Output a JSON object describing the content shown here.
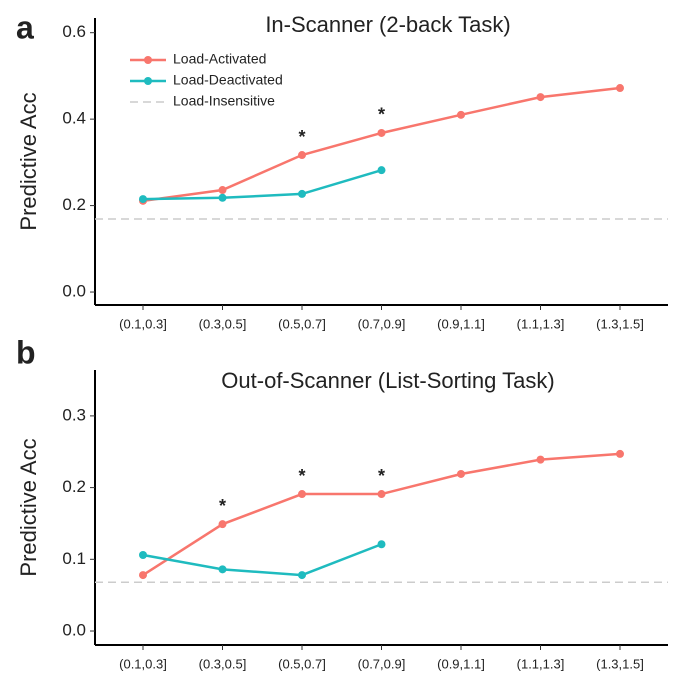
{
  "chart_data": [
    {
      "type": "line",
      "panel_label": "a",
      "title": "In-Scanner (2-back Task)",
      "ylabel": "Predictive Acc",
      "categories": [
        "(0.1,0.3]",
        "(0.3,0.5]",
        "(0.5,0.7]",
        "(0.7,0.9]",
        "(0.9,1.1]",
        "(1.1,1.3]",
        "(1.3,1.5]"
      ],
      "series": [
        {
          "name": "Load-Activated",
          "color": "#F8766D",
          "values": [
            0.211,
            0.236,
            0.317,
            0.368,
            0.41,
            0.451,
            0.472
          ]
        },
        {
          "name": "Load-Deactivated",
          "color": "#1FBBBF",
          "values": [
            0.215,
            0.218,
            0.227,
            0.282,
            null,
            null,
            null
          ]
        }
      ],
      "reference_line": {
        "name": "Load-Insensitive",
        "value": 0.169,
        "color": "#cccccc"
      },
      "significance": [
        null,
        null,
        "*",
        "*",
        null,
        null,
        null
      ],
      "ylim": [
        -0.03,
        0.634
      ],
      "yticks": [
        {
          "value": 0,
          "label": "0.0"
        },
        0.2,
        0.4,
        0.6
      ],
      "legend": "top-left"
    },
    {
      "type": "line",
      "panel_label": "b",
      "title": "Out-of-Scanner (List-Sorting Task)",
      "ylabel": "Predictive Acc",
      "categories": [
        "(0.1,0.3]",
        "(0.3,0.5]",
        "(0.5,0.7]",
        "(0.7,0.9]",
        "(0.9,1.1]",
        "(1.1,1.3]",
        "(1.3,1.5]"
      ],
      "series": [
        {
          "color": "#F8766D",
          "values": [
            0.078,
            0.149,
            0.191,
            0.191,
            0.219,
            0.239,
            0.247
          ]
        },
        {
          "color": "#1FBBBF",
          "values": [
            0.106,
            0.086,
            0.078,
            0.121,
            null,
            null,
            null
          ]
        }
      ],
      "reference_line": {
        "value": 0.068,
        "color": "#cccccc"
      },
      "significance": [
        null,
        "*",
        "*",
        "*",
        null,
        null,
        null
      ],
      "ylim": [
        -0.0195,
        0.364
      ],
      "yticks": [
        {
          "value": 0,
          "label": "0.0"
        },
        0.1,
        0.2,
        0.3
      ]
    }
  ]
}
